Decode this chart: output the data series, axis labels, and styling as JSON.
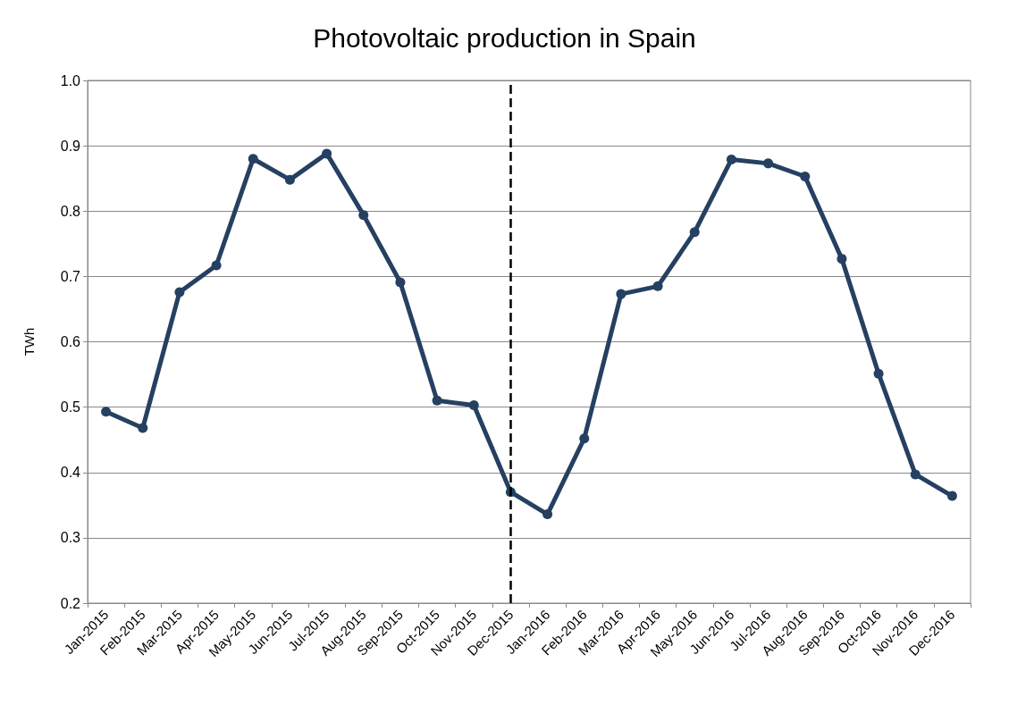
{
  "chart_data": {
    "type": "line",
    "title": "Photovoltaic production in Spain",
    "ylabel": "TWh",
    "categories": [
      "Jan-2015",
      "Feb-2015",
      "Mar-2015",
      "Apr-2015",
      "May-2015",
      "Jun-2015",
      "Jul-2015",
      "Aug-2015",
      "Sep-2015",
      "Oct-2015",
      "Nov-2015",
      "Dec-2015",
      "Jan-2016",
      "Feb-2016",
      "Mar-2016",
      "Apr-2016",
      "May-2016",
      "Jun-2016",
      "Jul-2016",
      "Aug-2016",
      "Sep-2016",
      "Oct-2016",
      "Nov-2016",
      "Dec-2016"
    ],
    "series": [
      {
        "color": "#254061",
        "values": [
          0.493,
          0.468,
          0.676,
          0.717,
          0.88,
          0.848,
          0.888,
          0.794,
          0.691,
          0.51,
          0.503,
          0.37,
          0.336,
          0.452,
          0.673,
          0.685,
          0.768,
          0.879,
          0.873,
          0.853,
          0.727,
          0.551,
          0.397,
          0.364
        ]
      }
    ],
    "ylim": [
      0.2,
      1.0
    ],
    "yticks": [
      0.2,
      0.3,
      0.4,
      0.5,
      0.6,
      0.7,
      0.8,
      0.9,
      {
        "value": 1.0,
        "label": "1.0"
      }
    ],
    "ref_lines": [
      {
        "axis": "x",
        "value": "Dec-2015",
        "color": "#000000",
        "line_style": "dashed"
      }
    ],
    "grid": "y",
    "marker": "circle",
    "line_style": "solid"
  }
}
